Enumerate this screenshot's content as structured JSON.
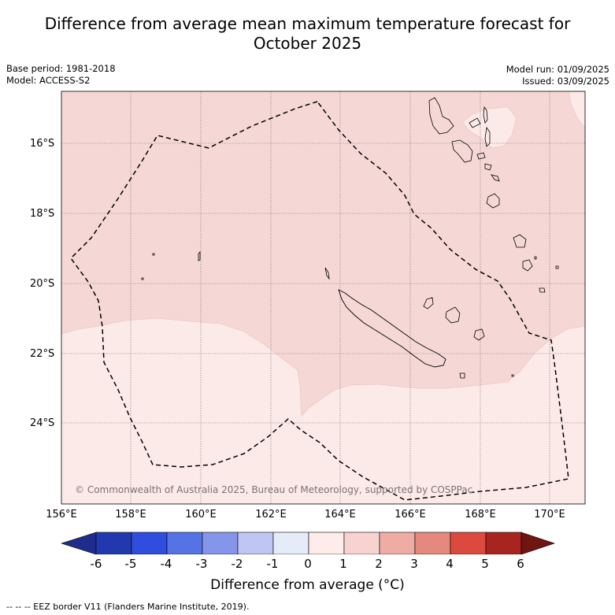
{
  "title_line1": "Difference from average mean maximum temperature forecast for",
  "title_line2": "October 2025",
  "meta_left": {
    "base_period": "Base period: 1981-2018",
    "model": "Model: ACCESS-S2"
  },
  "meta_right": {
    "model_run": "Model run: 01/09/2025",
    "issued": "Issued: 03/09/2025"
  },
  "map": {
    "lat_labels": [
      "16°S",
      "18°S",
      "20°S",
      "22°S",
      "24°S"
    ],
    "lon_labels": [
      "156°E",
      "158°E",
      "160°E",
      "162°E",
      "164°E",
      "166°E",
      "168°E",
      "170°E"
    ],
    "copyright": "© Commonwealth of Australia 2025, Bureau of Meteorology, supported by COSPPac",
    "anomaly_regions": [
      {
        "category": "1 to 2 °C above average",
        "color": "#f5d8d5"
      },
      {
        "category": "0 to 1 °C above average",
        "color": "#fbeae8"
      }
    ]
  },
  "colorbar": {
    "ticks": [
      "-6",
      "-5",
      "-4",
      "-3",
      "-2",
      "-1",
      "0",
      "1",
      "2",
      "3",
      "4",
      "5",
      "6"
    ],
    "colors": [
      "#1e2d8b",
      "#2238ae",
      "#2f4ee0",
      "#5673e6",
      "#8596ea",
      "#bec6f3",
      "#e6ebfa",
      "#fdecea",
      "#f6d3cf",
      "#eeaca5",
      "#e5887e",
      "#db4a3d",
      "#a8251f",
      "#6f1512"
    ],
    "label": "Difference from average (°C)"
  },
  "footer": "--  --  -- EEZ border V11 (Flanders Marine Institute, 2019)."
}
